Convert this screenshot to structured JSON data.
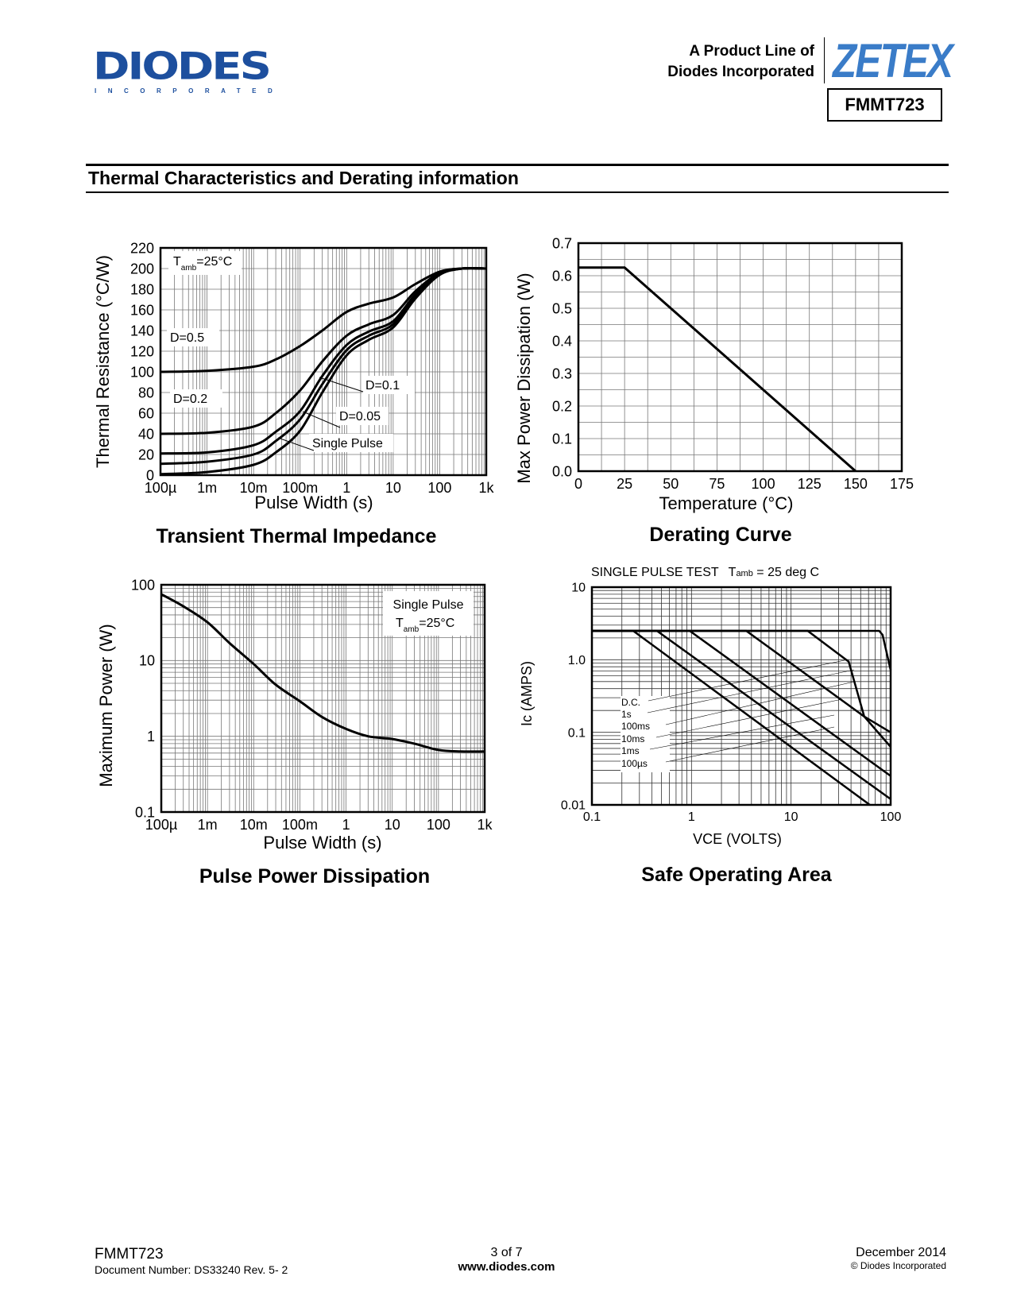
{
  "header": {
    "logo_diodes": "DIODES",
    "logo_diodes_sub": "INCORPORATED",
    "product_line_1": "A Product Line of",
    "product_line_2": "Diodes Incorporated",
    "logo_zetex": "ZETEX",
    "part_number": "FMMT723",
    "brand_color": "#1d4f9e",
    "zetex_color": "#3a7cc8"
  },
  "section_title": "Thermal Characteristics and Derating information",
  "footer": {
    "part": "FMMT723",
    "doc_number": "Document Number: DS33240 Rev. 5- 2",
    "page": "3 of 7",
    "url": "www.diodes.com",
    "date": "December 2014",
    "copyright": "© Diodes Incorporated"
  },
  "chart_data": [
    {
      "type": "line",
      "title": "Transient Thermal Impedance",
      "xlabel": "Pulse Width (s)",
      "ylabel": "Thermal Resistance (°C/W)",
      "xscale": "log",
      "xlim": [
        0.0001,
        1000
      ],
      "ylim": [
        0,
        220
      ],
      "grid": true,
      "x_ticks": [
        0.0001,
        0.001,
        0.01,
        0.1,
        1,
        10,
        100,
        1000
      ],
      "x_tick_labels": [
        "100µ",
        "1m",
        "10m",
        "100m",
        "1",
        "10",
        "100",
        "1k"
      ],
      "y_ticks": [
        0,
        20,
        40,
        60,
        80,
        100,
        120,
        140,
        160,
        180,
        200,
        220
      ],
      "y_tick_labels": [
        "0",
        "20",
        "40",
        "60",
        "80",
        "100",
        "120",
        "140",
        "160",
        "180",
        "200",
        "220"
      ],
      "annotation": {
        "t": "T",
        "sub": "amb",
        "rest": "=25°C"
      },
      "x": [
        0.0001,
        0.001,
        0.01,
        0.03,
        0.1,
        0.3,
        1,
        3,
        10,
        30,
        100,
        300,
        1000
      ],
      "series": [
        {
          "name": "D=0.5",
          "values": [
            100,
            101,
            105,
            112,
            125,
            140,
            158,
            166,
            172,
            185,
            197,
            200,
            200
          ]
        },
        {
          "name": "D=0.2",
          "values": [
            40,
            41,
            47,
            60,
            82,
            110,
            135,
            146,
            155,
            178,
            196,
            200,
            200
          ]
        },
        {
          "name": "D=0.1",
          "values": [
            21,
            22,
            29,
            42,
            62,
            96,
            126,
            139,
            149,
            175,
            195,
            200,
            200
          ]
        },
        {
          "name": "D=0.05",
          "values": [
            11,
            13,
            20,
            33,
            54,
            88,
            121,
            135,
            146,
            173,
            194,
            200,
            200
          ]
        },
        {
          "name": "Single Pulse",
          "values": [
            1,
            3,
            10,
            22,
            43,
            80,
            116,
            131,
            143,
            171,
            194,
            200,
            200
          ]
        }
      ]
    },
    {
      "type": "line",
      "title": "Derating Curve",
      "xlabel": "Temperature (°C)",
      "ylabel": "Max Power Dissipation (W)",
      "xlim": [
        0,
        175
      ],
      "ylim": [
        0,
        0.7
      ],
      "grid": true,
      "x_ticks": [
        0,
        25,
        50,
        75,
        100,
        125,
        150,
        175
      ],
      "x_tick_labels": [
        "0",
        "25",
        "50",
        "75",
        "100",
        "125",
        "150",
        "175"
      ],
      "y_ticks": [
        0,
        0.1,
        0.2,
        0.3,
        0.4,
        0.5,
        0.6,
        0.7
      ],
      "y_tick_labels": [
        "0.0",
        "0.1",
        "0.2",
        "0.3",
        "0.4",
        "0.5",
        "0.6",
        "0.7"
      ],
      "x": [
        0,
        25,
        150
      ],
      "series": [
        {
          "values": [
            0.625,
            0.625,
            0
          ]
        }
      ]
    },
    {
      "type": "line",
      "title": "Pulse Power Dissipation",
      "xlabel": "Pulse Width (s)",
      "ylabel": "Maximum Power (W)",
      "xscale": "log",
      "yscale": "log",
      "xlim": [
        0.0001,
        1000
      ],
      "ylim": [
        0.1,
        100
      ],
      "grid": true,
      "x_ticks": [
        0.0001,
        0.001,
        0.01,
        0.1,
        1,
        10,
        100,
        1000
      ],
      "x_tick_labels": [
        "100µ",
        "1m",
        "10m",
        "100m",
        "1",
        "10",
        "100",
        "1k"
      ],
      "y_ticks": [
        0.1,
        1,
        10,
        100
      ],
      "y_tick_labels": [
        "0.1",
        "1",
        "10",
        "100"
      ],
      "annotation": {
        "line1": "Single Pulse",
        "t": "T",
        "sub": "amb",
        "rest": "=25°C"
      },
      "x": [
        0.0001,
        0.0003,
        0.001,
        0.003,
        0.01,
        0.03,
        0.1,
        0.3,
        1,
        3,
        10,
        30,
        100,
        300,
        1000
      ],
      "series": [
        {
          "name": "Single Pulse",
          "values": [
            75,
            52,
            32,
            17,
            9,
            4.8,
            2.9,
            1.8,
            1.25,
            1.0,
            0.92,
            0.8,
            0.66,
            0.63,
            0.63
          ]
        }
      ]
    },
    {
      "type": "line",
      "title": "Safe Operating Area",
      "subtitle": {
        "main": "SINGLE PULSE TEST",
        "t": "T",
        "sub": "amb",
        "rest": " = 25 deg C"
      },
      "xlabel": "VCE   (VOLTS)",
      "ylabel": "Ic  (AMPS)",
      "xscale": "log",
      "yscale": "log",
      "xlim": [
        0.1,
        100
      ],
      "ylim": [
        0.01,
        10
      ],
      "grid": true,
      "x_ticks": [
        0.1,
        1,
        10,
        100
      ],
      "x_tick_labels": [
        "0.1",
        "1",
        "10",
        "100"
      ],
      "y_ticks": [
        0.01,
        0.1,
        1,
        10
      ],
      "y_tick_labels": [
        "0.01",
        "0.1",
        "1.0",
        "10"
      ],
      "series": [
        {
          "name": "D.C.",
          "points": [
            [
              0.1,
              2.5
            ],
            [
              0.26,
              2.5
            ],
            [
              61.8,
              0.01
            ]
          ]
        },
        {
          "name": "1s",
          "points": [
            [
              0.1,
              2.5
            ],
            [
              0.45,
              2.5
            ],
            [
              100,
              0.012
            ]
          ]
        },
        {
          "name": "100ms",
          "points": [
            [
              0.1,
              2.5
            ],
            [
              0.96,
              2.5
            ],
            [
              100,
              0.025
            ]
          ]
        },
        {
          "name": "10ms",
          "points": [
            [
              0.1,
              2.5
            ],
            [
              3.55,
              2.5
            ],
            [
              54.3,
              0.165
            ],
            [
              100,
              0.063
            ]
          ]
        },
        {
          "name": "1ms",
          "points": [
            [
              0.1,
              2.5
            ],
            [
              14.7,
              2.5
            ],
            [
              37.9,
              0.94
            ],
            [
              54.3,
              0.165
            ],
            [
              100,
              0.1
            ]
          ]
        },
        {
          "name": "100µs",
          "points": [
            [
              0.1,
              2.5
            ],
            [
              76.7,
              2.5
            ],
            [
              83,
              2.2
            ],
            [
              100,
              0.72
            ]
          ]
        }
      ]
    }
  ]
}
